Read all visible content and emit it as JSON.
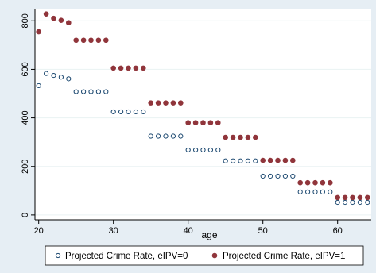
{
  "chart_data": {
    "type": "scatter",
    "title": "",
    "xlabel": "age",
    "ylabel": "",
    "xlim": [
      19.5,
      64.5
    ],
    "ylim": [
      -20,
      850
    ],
    "xticks": [
      20,
      30,
      40,
      50,
      60
    ],
    "yticks": [
      0,
      200,
      400,
      600,
      800
    ],
    "grid": "horizontal",
    "legend_position": "bottom",
    "series": [
      {
        "name": "Projected Crime Rate, eIPV=0",
        "marker": "hollow-circle",
        "color": "#1a476f",
        "points": [
          [
            20,
            533
          ],
          [
            21,
            583
          ],
          [
            22,
            575
          ],
          [
            23,
            568
          ],
          [
            24,
            561
          ],
          [
            25,
            508
          ],
          [
            26,
            508
          ],
          [
            27,
            508
          ],
          [
            28,
            508
          ],
          [
            29,
            508
          ],
          [
            30,
            425
          ],
          [
            31,
            425
          ],
          [
            32,
            425
          ],
          [
            33,
            425
          ],
          [
            34,
            425
          ],
          [
            35,
            325
          ],
          [
            36,
            325
          ],
          [
            37,
            325
          ],
          [
            38,
            325
          ],
          [
            39,
            325
          ],
          [
            40,
            268
          ],
          [
            41,
            268
          ],
          [
            42,
            268
          ],
          [
            43,
            268
          ],
          [
            44,
            268
          ],
          [
            45,
            223
          ],
          [
            46,
            223
          ],
          [
            47,
            223
          ],
          [
            48,
            223
          ],
          [
            49,
            223
          ],
          [
            50,
            160
          ],
          [
            51,
            160
          ],
          [
            52,
            160
          ],
          [
            53,
            160
          ],
          [
            54,
            160
          ],
          [
            55,
            95
          ],
          [
            56,
            95
          ],
          [
            57,
            95
          ],
          [
            58,
            95
          ],
          [
            59,
            95
          ],
          [
            60,
            52
          ],
          [
            61,
            52
          ],
          [
            62,
            52
          ],
          [
            63,
            52
          ],
          [
            64,
            52
          ]
        ]
      },
      {
        "name": "Projected Crime Rate, eIPV=1",
        "marker": "filled-circle",
        "color": "#90353b",
        "points": [
          [
            20,
            755
          ],
          [
            21,
            828
          ],
          [
            22,
            810
          ],
          [
            23,
            802
          ],
          [
            24,
            792
          ],
          [
            25,
            720
          ],
          [
            26,
            720
          ],
          [
            27,
            720
          ],
          [
            28,
            720
          ],
          [
            29,
            720
          ],
          [
            30,
            605
          ],
          [
            31,
            605
          ],
          [
            32,
            605
          ],
          [
            33,
            605
          ],
          [
            34,
            605
          ],
          [
            35,
            462
          ],
          [
            36,
            462
          ],
          [
            37,
            462
          ],
          [
            38,
            462
          ],
          [
            39,
            462
          ],
          [
            40,
            380
          ],
          [
            41,
            380
          ],
          [
            42,
            380
          ],
          [
            43,
            380
          ],
          [
            44,
            380
          ],
          [
            45,
            320
          ],
          [
            46,
            320
          ],
          [
            47,
            320
          ],
          [
            48,
            320
          ],
          [
            49,
            320
          ],
          [
            50,
            225
          ],
          [
            51,
            225
          ],
          [
            52,
            225
          ],
          [
            53,
            225
          ],
          [
            54,
            225
          ],
          [
            55,
            133
          ],
          [
            56,
            133
          ],
          [
            57,
            133
          ],
          [
            58,
            133
          ],
          [
            59,
            133
          ],
          [
            60,
            72
          ],
          [
            61,
            72
          ],
          [
            62,
            72
          ],
          [
            63,
            72
          ],
          [
            64,
            72
          ]
        ]
      }
    ]
  }
}
